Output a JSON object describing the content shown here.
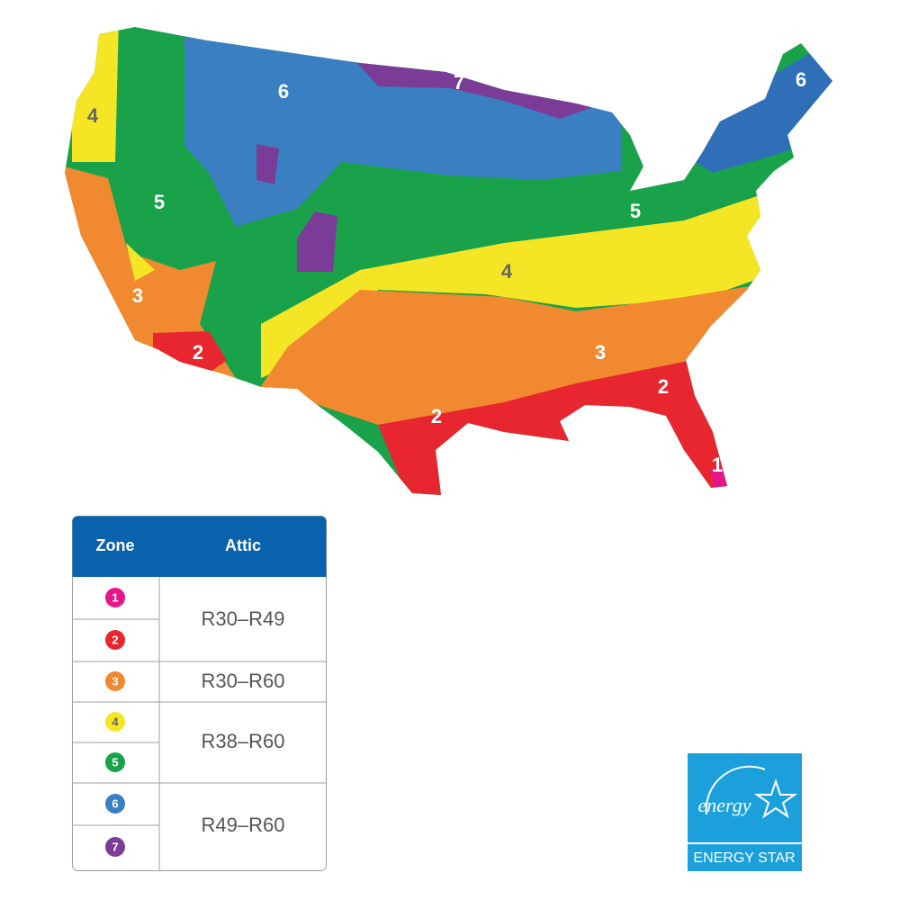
{
  "map": {
    "labels": [
      "6",
      "7",
      "6",
      "4",
      "5",
      "5",
      "4",
      "3",
      "3",
      "2",
      "2",
      "2",
      "1"
    ]
  },
  "table": {
    "headers": [
      "Zone",
      "Attic"
    ],
    "zones": [
      "1",
      "2",
      "3",
      "4",
      "5",
      "6",
      "7"
    ],
    "ranges": [
      "R30–R49",
      "R30–R60",
      "R38–R60",
      "R49–R60"
    ]
  },
  "logo": {
    "script": "energy",
    "label": "ENERGY STAR"
  }
}
